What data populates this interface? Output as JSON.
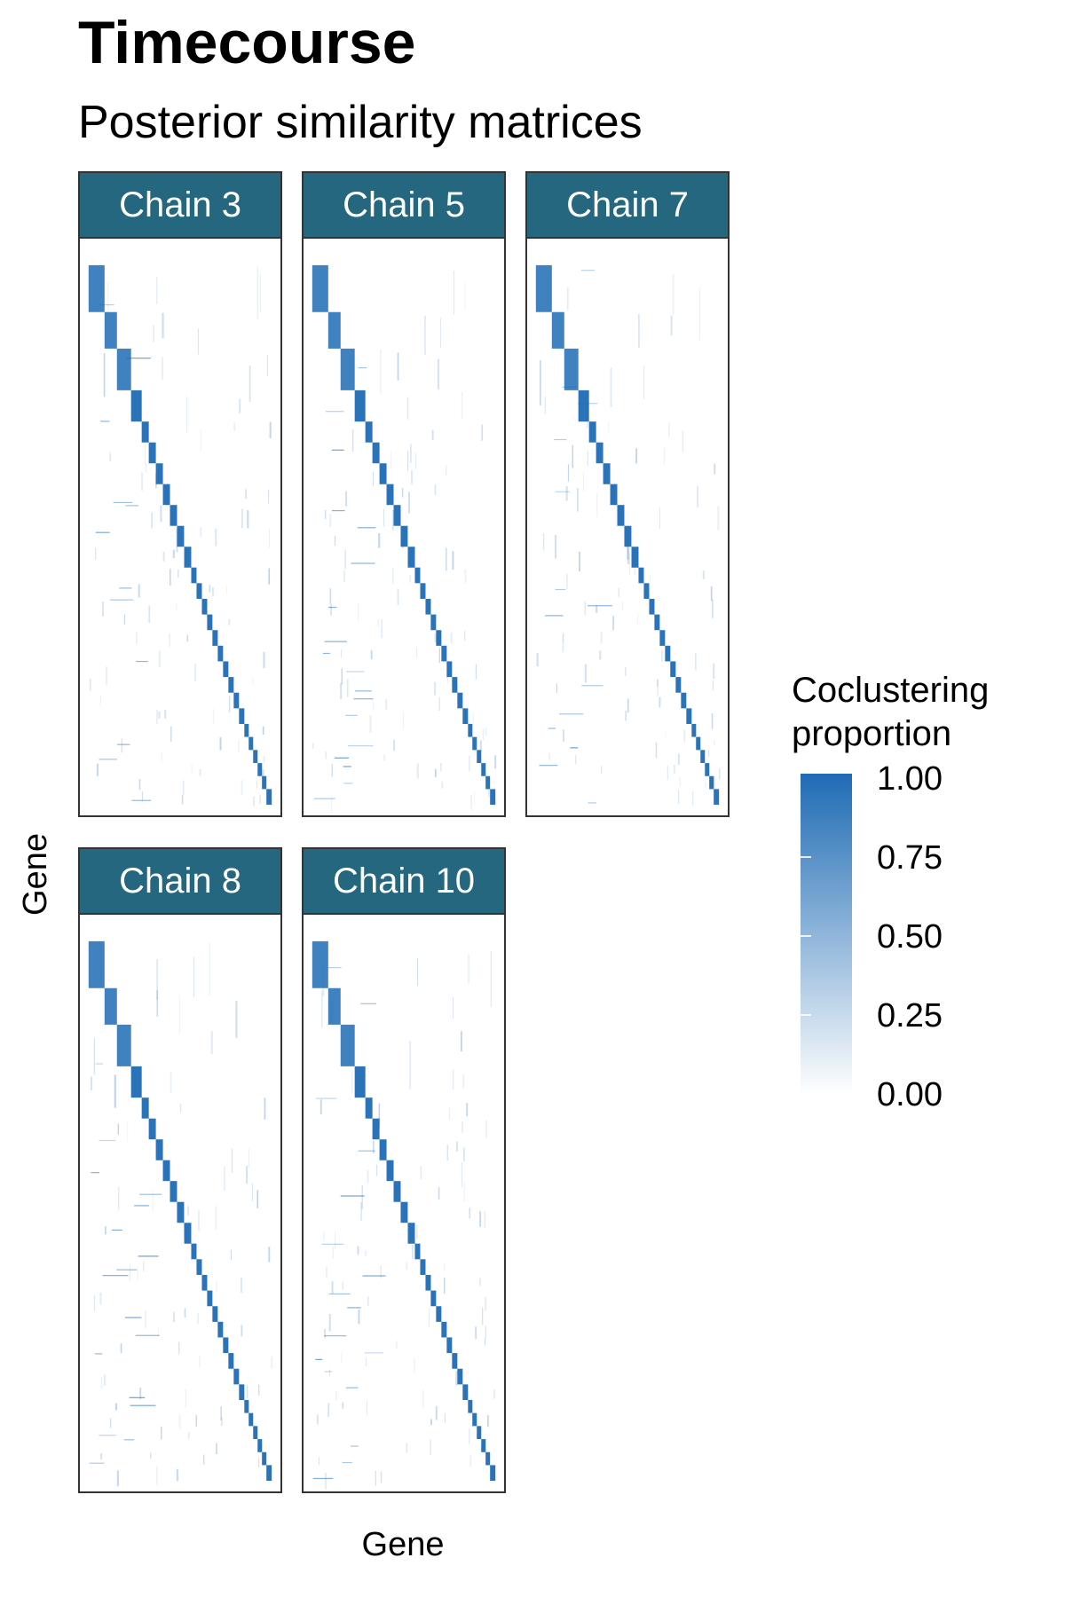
{
  "chart_data": {
    "type": "heatmap",
    "title": "Timecourse",
    "subtitle": "Posterior similarity matrices",
    "xlabel": "Gene",
    "ylabel": "Gene",
    "legend": {
      "title": "Coclustering proportion",
      "title_lines": [
        "Coclustering",
        "proportion"
      ],
      "position": "right",
      "low_color": "#ffffff",
      "high_color": "#1f6bb4",
      "range": [
        0,
        1
      ],
      "ticks": [
        "1.00",
        "0.75",
        "0.50",
        "0.25",
        "0.00"
      ]
    },
    "strip_color": "#25677f",
    "panels": [
      {
        "label": "Chain 3"
      },
      {
        "label": "Chain 5"
      },
      {
        "label": "Chain 7"
      },
      {
        "label": "Chain 8"
      },
      {
        "label": "Chain 10"
      }
    ],
    "diagonal_blocks": [
      0.09,
      0.07,
      0.08,
      0.06,
      0.04,
      0.04,
      0.04,
      0.04,
      0.04,
      0.04,
      0.04,
      0.03,
      0.03,
      0.03,
      0.03,
      0.03,
      0.03,
      0.03,
      0.03,
      0.03,
      0.03,
      0.025,
      0.025,
      0.025,
      0.025,
      0.025,
      0.03
    ]
  }
}
